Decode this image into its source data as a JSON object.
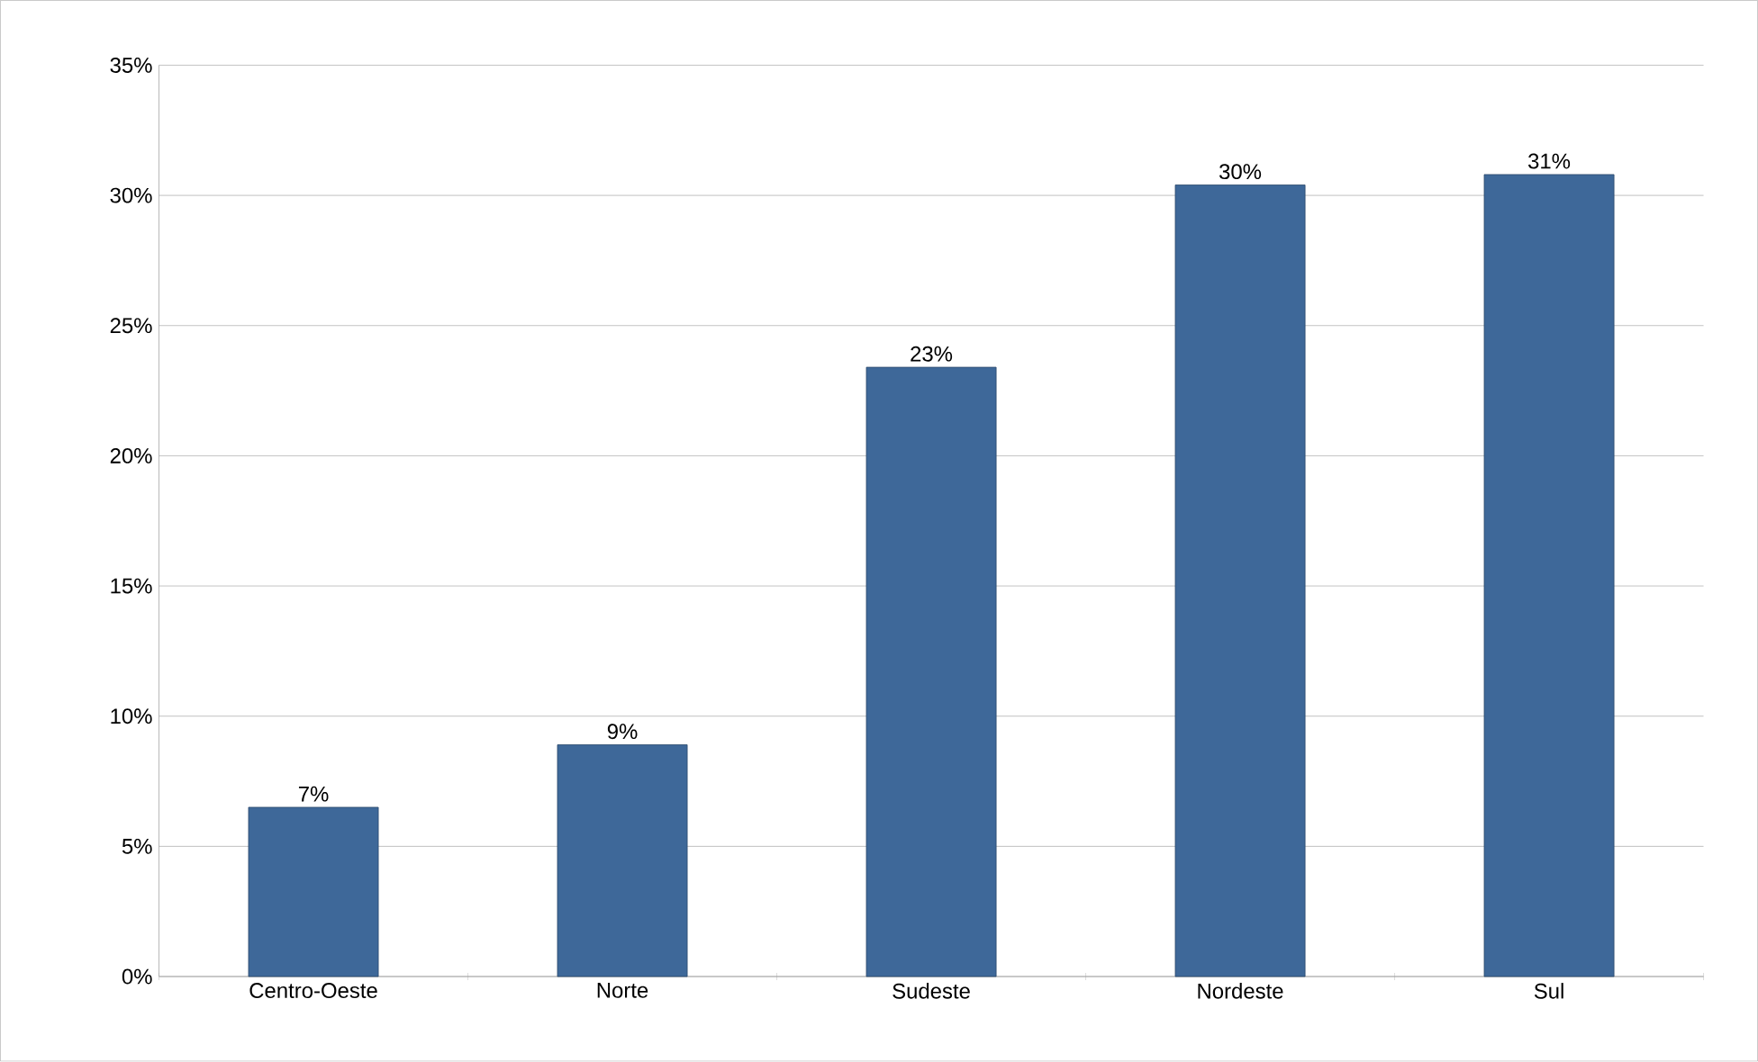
{
  "chart_data": {
    "type": "bar",
    "categories": [
      "Centro-Oeste",
      "Norte",
      "Sudeste",
      "Nordeste",
      "Sul"
    ],
    "values": [
      6.5,
      8.9,
      23.4,
      30.4,
      30.8
    ],
    "value_labels": [
      "7%",
      "9%",
      "23%",
      "30%",
      "31%"
    ],
    "color": "#3e6899",
    "ylim": [
      0,
      35
    ],
    "yticks": [
      {
        "value": 0,
        "label": "0%"
      },
      {
        "value": 5,
        "label": "5%"
      },
      {
        "value": 10,
        "label": "10%"
      },
      {
        "value": 15,
        "label": "15%"
      },
      {
        "value": 20,
        "label": "20%"
      },
      {
        "value": 25,
        "label": "25%"
      },
      {
        "value": 30,
        "label": "30%"
      },
      {
        "value": 35,
        "label": "35%"
      }
    ],
    "grid": "y"
  }
}
